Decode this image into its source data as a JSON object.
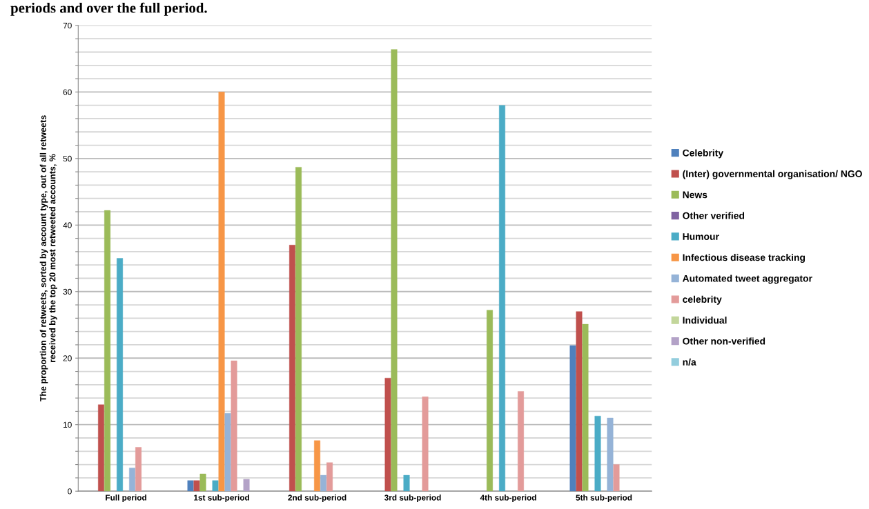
{
  "chart_data": {
    "type": "bar",
    "title": "periods and over the full period.",
    "ylabel": "The proportion of retweets, sorted by account type, out of all retweets\nreceived by the top 20 most retweeted accounts, %",
    "categories": [
      "Full period",
      "1st sub-period",
      "2nd sub-period",
      "3rd sub-period",
      "4th sub-period",
      "5th sub-period"
    ],
    "series": [
      {
        "name": "Celebrity",
        "color": "#4f81bd",
        "values": [
          null,
          1.6,
          null,
          null,
          null,
          21.9
        ]
      },
      {
        "name": "(Inter) governmental organisation/ NGO",
        "color": "#c0504d",
        "values": [
          13,
          1.6,
          37,
          17,
          null,
          27
        ]
      },
      {
        "name": "News",
        "color": "#9bbb59",
        "values": [
          42.2,
          2.6,
          48.7,
          66.4,
          27.2,
          25.1
        ]
      },
      {
        "name": "Other verified",
        "color": "#8064a2",
        "values": [
          null,
          null,
          null,
          null,
          null,
          null
        ]
      },
      {
        "name": "Humour",
        "color": "#4bacc6",
        "values": [
          35,
          1.6,
          null,
          2.4,
          58,
          11.3
        ]
      },
      {
        "name": "Infectious disease tracking",
        "color": "#f79646",
        "values": [
          null,
          60,
          7.6,
          null,
          null,
          null
        ]
      },
      {
        "name": "Automated tweet aggregator",
        "color": "#95b3d7",
        "values": [
          3.5,
          11.7,
          2.4,
          null,
          null,
          11
        ]
      },
      {
        "name": "celebrity",
        "color": "#e39b9a",
        "values": [
          6.6,
          19.6,
          4.3,
          14.2,
          15,
          4
        ]
      },
      {
        "name": "Individual",
        "color": "#c3d69b",
        "values": [
          null,
          null,
          null,
          null,
          null,
          null
        ]
      },
      {
        "name": "Other non-verified",
        "color": "#b3a2c7",
        "values": [
          null,
          1.8,
          null,
          null,
          null,
          null
        ]
      },
      {
        "name": "n/a",
        "color": "#93cddd",
        "values": [
          null,
          null,
          null,
          null,
          null,
          null
        ]
      }
    ],
    "ylim": [
      0,
      70
    ],
    "yticks": [
      0,
      {
        "value": 2,
        "label": null
      },
      {
        "value": 4,
        "label": null
      },
      {
        "value": 6,
        "label": null
      },
      {
        "value": 8,
        "label": null
      },
      10,
      {
        "value": 12,
        "label": null
      },
      {
        "value": 14,
        "label": null
      },
      {
        "value": 16,
        "label": null
      },
      {
        "value": 18,
        "label": null
      },
      20,
      {
        "value": 22,
        "label": null
      },
      {
        "value": 24,
        "label": null
      },
      {
        "value": 26,
        "label": null
      },
      {
        "value": 28,
        "label": null
      },
      30,
      {
        "value": 32,
        "label": null
      },
      {
        "value": 34,
        "label": null
      },
      {
        "value": 36,
        "label": null
      },
      {
        "value": 38,
        "label": null
      },
      40,
      {
        "value": 42,
        "label": null
      },
      {
        "value": 44,
        "label": null
      },
      {
        "value": 46,
        "label": null
      },
      {
        "value": 48,
        "label": null
      },
      50,
      {
        "value": 52,
        "label": null
      },
      {
        "value": 54,
        "label": null
      },
      {
        "value": 56,
        "label": null
      },
      {
        "value": 58,
        "label": null
      },
      60,
      {
        "value": 62,
        "label": null
      },
      {
        "value": 64,
        "label": null
      },
      {
        "value": 66,
        "label": null
      },
      {
        "value": 68,
        "label": null
      },
      70
    ],
    "grid": "y",
    "legend": "right"
  }
}
